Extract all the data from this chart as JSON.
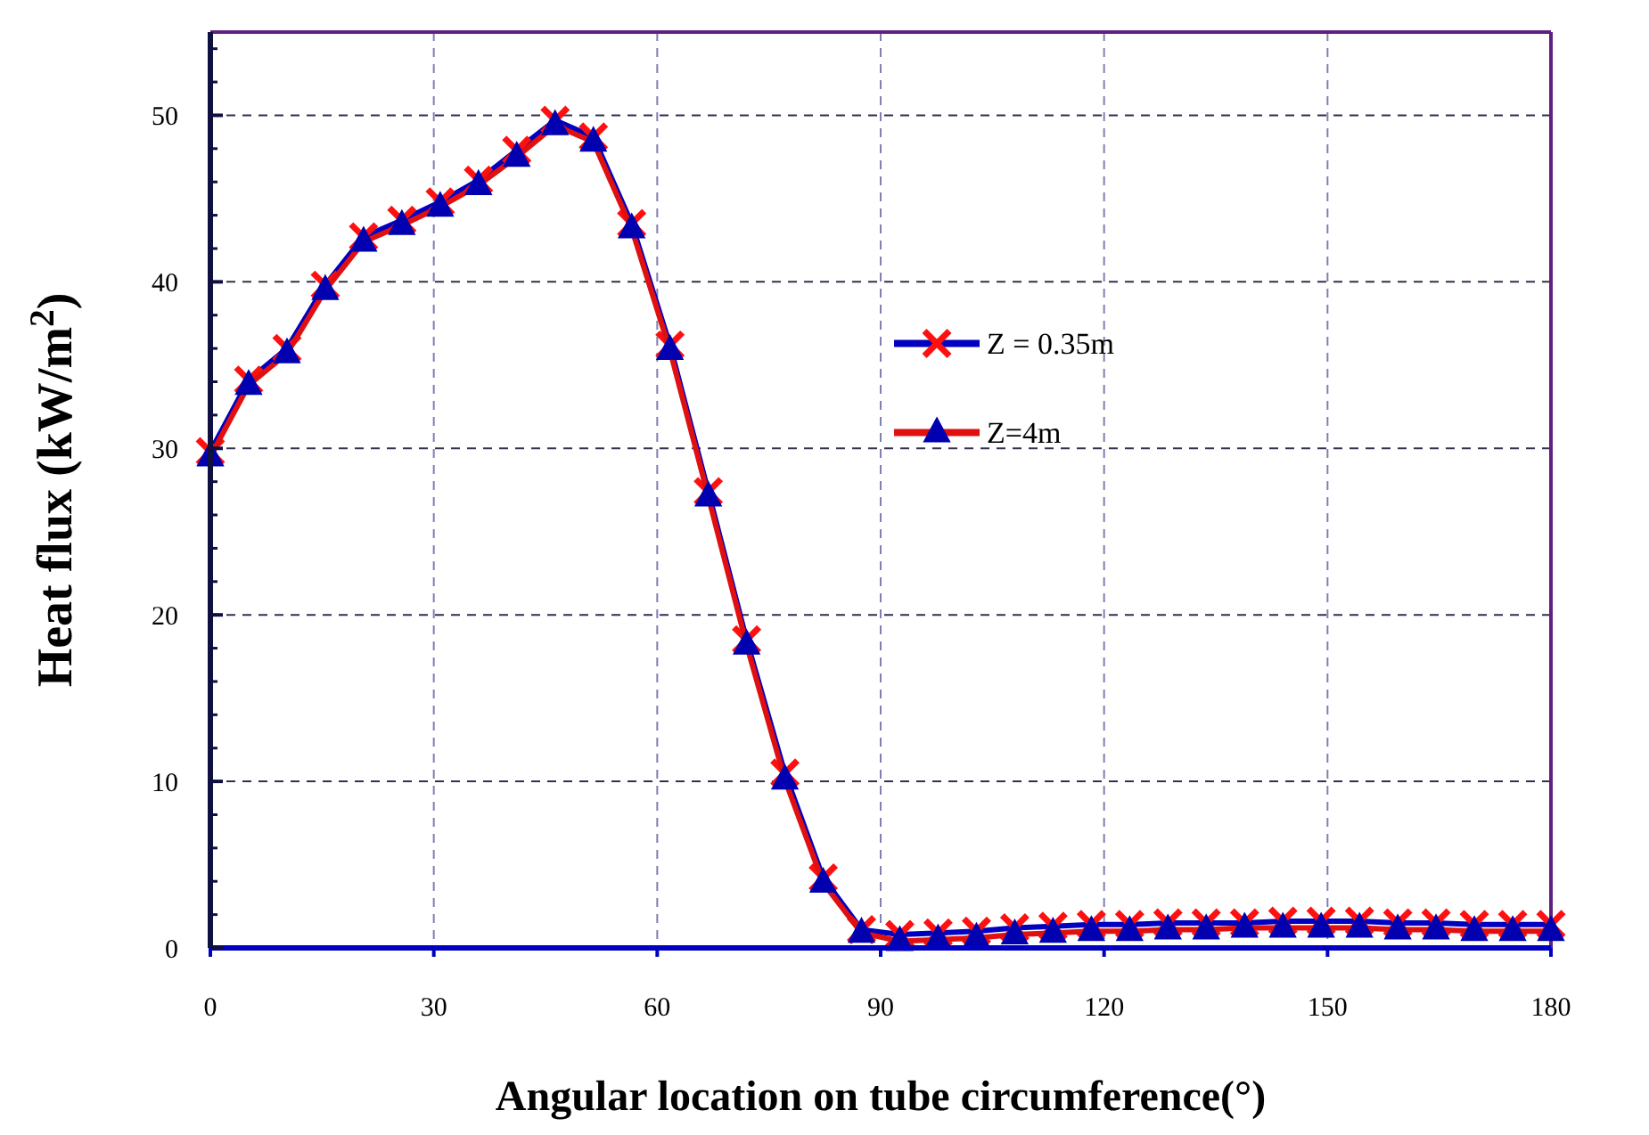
{
  "chart_data": {
    "type": "line",
    "xlabel": "Angular location on tube circumference(°)",
    "ylabel": "Heat flux (kW/m$^{2}$)",
    "x": [
      0,
      5.14,
      10.29,
      15.43,
      20.57,
      25.71,
      30.86,
      36,
      41.14,
      46.29,
      51.43,
      56.57,
      61.71,
      66.86,
      72,
      77.14,
      82.29,
      87.43,
      92.57,
      97.71,
      102.86,
      108,
      113.14,
      118.29,
      123.43,
      128.57,
      133.71,
      138.86,
      144,
      149.14,
      154.29,
      159.43,
      164.57,
      169.71,
      174.86,
      180
    ],
    "xlim": [
      0,
      180
    ],
    "xticks": [
      0,
      30,
      60,
      90,
      120,
      150,
      180
    ],
    "ylim": [
      0,
      55
    ],
    "yticks": [
      0,
      10,
      20,
      30,
      40,
      50
    ],
    "grid": true,
    "legend": "right",
    "line_style": "solid",
    "series": [
      {
        "name": "Z = 0.35m",
        "color": "#0000c0",
        "colors": [
          "#ff1010",
          "#ff1010",
          "#ff1010",
          "#ff1010",
          "#ff1010",
          "#ff1010",
          "#ff1010",
          "#ff1010",
          "#ff1010",
          "#ff1010",
          "#ff1010",
          "#ff1010",
          "#ff1010",
          "#ff1010",
          "#ff1010",
          "#ff1010",
          "#ff1010",
          "#ff1010",
          "#ff1010",
          "#ff1010",
          "#ff1010",
          "#ff1010",
          "#ff1010",
          "#ff1010",
          "#ff1010",
          "#ff1010",
          "#ff1010",
          "#ff1010",
          "#ff1010",
          "#ff1010",
          "#ff1010",
          "#ff1010",
          "#ff1010",
          "#ff1010",
          "#ff1010",
          "#ff1010"
        ],
        "marker": "cross",
        "values": [
          29.8,
          34.1,
          36.0,
          39.8,
          42.7,
          43.7,
          44.8,
          46.1,
          47.9,
          49.7,
          48.7,
          43.5,
          36.2,
          27.4,
          18.5,
          10.5,
          4.2,
          1.1,
          0.8,
          0.9,
          1.0,
          1.2,
          1.3,
          1.4,
          1.4,
          1.5,
          1.5,
          1.5,
          1.6,
          1.6,
          1.6,
          1.5,
          1.5,
          1.4,
          1.4,
          1.4
        ]
      },
      {
        "name": "Z=4m",
        "color": "#e01010",
        "colors": [
          "#0000b0",
          "#0000b0",
          "#0000b0",
          "#0000b0",
          "#0000b0",
          "#0000b0",
          "#0000b0",
          "#0000b0",
          "#0000b0",
          "#0000b0",
          "#0000b0",
          "#0000b0",
          "#0000b0",
          "#0000b0",
          "#0000b0",
          "#0000b0",
          "#0000b0",
          "#0000b0",
          "#0000b0",
          "#0000b0",
          "#0000b0",
          "#0000b0",
          "#0000b0",
          "#0000b0",
          "#0000b0",
          "#0000b0",
          "#0000b0",
          "#0000b0",
          "#0000b0",
          "#0000b0",
          "#0000b0",
          "#0000b0",
          "#0000b0",
          "#0000b0",
          "#0000b0",
          "#0000b0"
        ],
        "marker": "triangle",
        "values": [
          29.5,
          33.8,
          35.7,
          39.5,
          42.4,
          43.4,
          44.5,
          45.8,
          47.5,
          49.4,
          48.4,
          43.2,
          35.9,
          27.1,
          18.2,
          10.1,
          3.9,
          0.9,
          0.4,
          0.5,
          0.6,
          0.8,
          0.9,
          1.0,
          1.0,
          1.1,
          1.1,
          1.2,
          1.2,
          1.2,
          1.2,
          1.1,
          1.1,
          1.0,
          1.0,
          1.0
        ]
      }
    ]
  }
}
